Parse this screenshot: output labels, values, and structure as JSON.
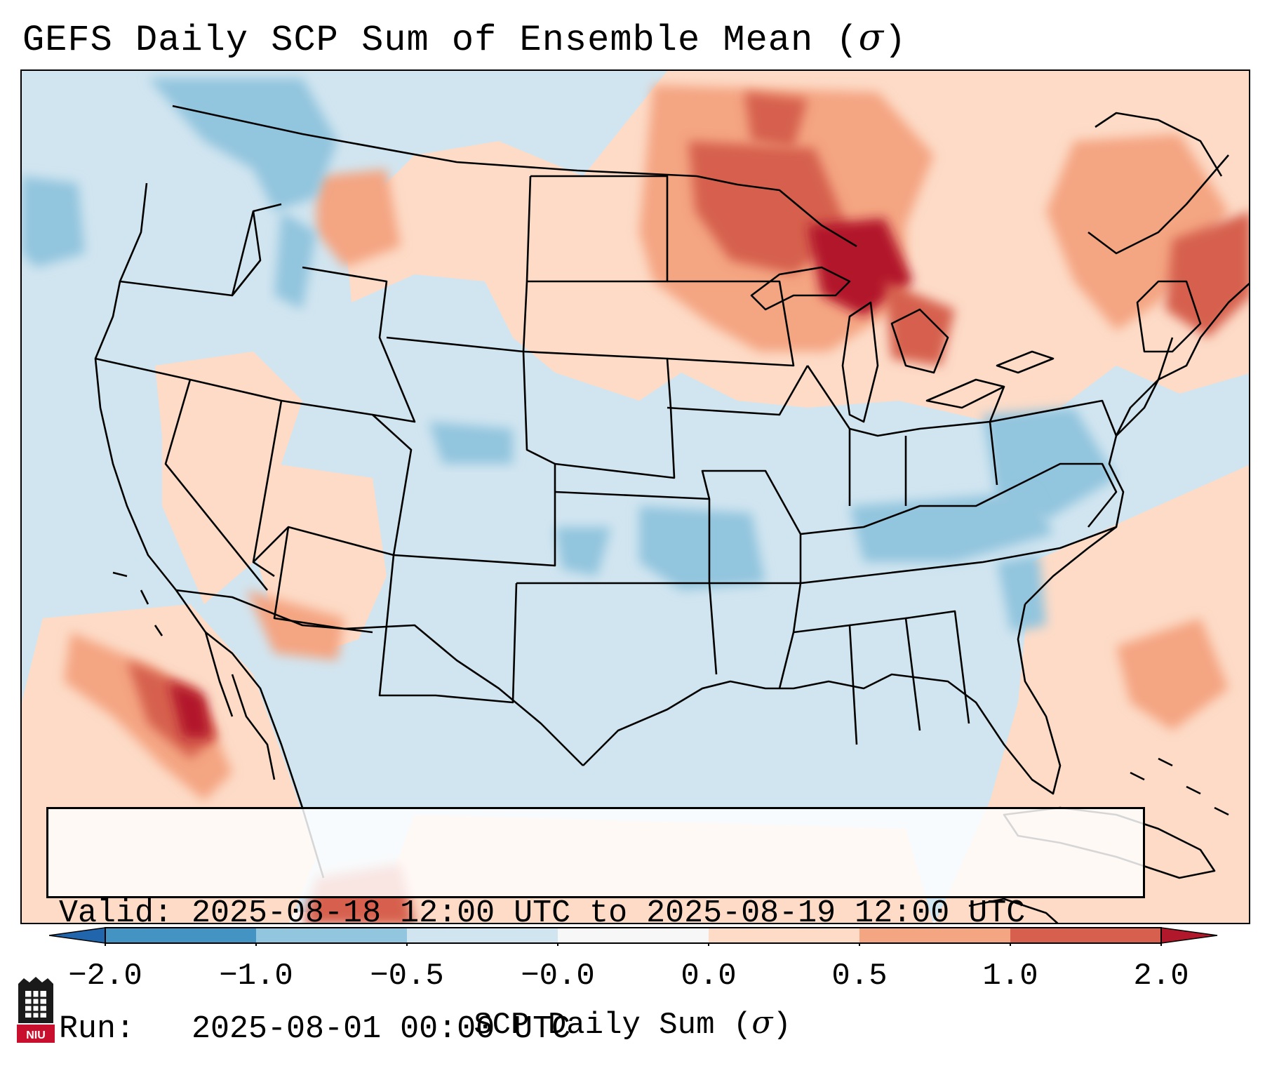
{
  "title": {
    "prefix": "GEFS Daily SCP Sum of Ensemble Mean (",
    "symbol": "σ",
    "suffix": ")"
  },
  "info_box": {
    "valid_line": "Valid: 2025-08-18 12:00 UTC to 2025-08-19 12:00 UTC",
    "run_line": "Run:   2025-08-01 00:00 UTC"
  },
  "colorbar": {
    "label_prefix": "SCP Daily Sum (",
    "label_symbol": "σ",
    "label_suffix": ")",
    "ticks": [
      "−2.0",
      "−1.0",
      "−0.5",
      "−0.0",
      "0.0",
      "0.5",
      "1.0",
      "2.0"
    ],
    "colors": [
      "#2166ac",
      "#4393c3",
      "#92c5de",
      "#d1e5f0",
      "#f7f7f7",
      "#fddbc7",
      "#f4a582",
      "#d6604d",
      "#b2182b"
    ],
    "bins": [
      {
        "range": "< −2.0",
        "color": "#2166ac"
      },
      {
        "range": "−2.0 to −1.0",
        "color": "#4393c3"
      },
      {
        "range": "−1.0 to −0.5",
        "color": "#92c5de"
      },
      {
        "range": "−0.5 to −0.0",
        "color": "#d1e5f0"
      },
      {
        "range": "−0.0 to 0.0",
        "color": "#f7f7f7"
      },
      {
        "range": "0.0 to 0.5",
        "color": "#fddbc7"
      },
      {
        "range": "0.5 to 1.0",
        "color": "#f4a582"
      },
      {
        "range": "1.0 to 2.0",
        "color": "#d6604d"
      },
      {
        "range": "> 2.0",
        "color": "#b2182b"
      }
    ]
  },
  "logo": {
    "text": "NIU"
  }
}
